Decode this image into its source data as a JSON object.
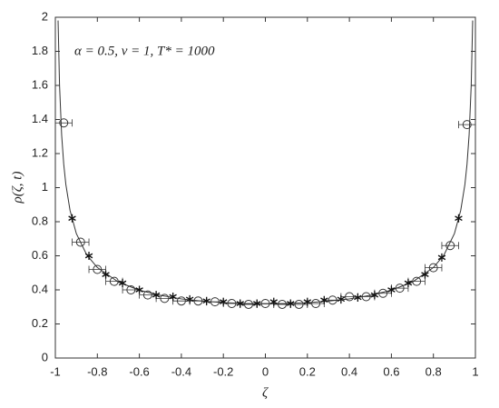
{
  "chart_data": {
    "type": "scatter",
    "xlabel": "ζ",
    "ylabel": "ρ(ζ, t)",
    "annotation": "α = 0.5, v = 1, T* = 1000",
    "xlim": [
      -1,
      1
    ],
    "ylim": [
      0,
      2
    ],
    "xticks": [
      -1,
      -0.8,
      -0.6,
      -0.4,
      -0.2,
      0,
      0.2,
      0.4,
      0.6,
      0.8,
      1
    ],
    "yticks": [
      0,
      0.2,
      0.4,
      0.6,
      0.8,
      1,
      1.2,
      1.4,
      1.6,
      1.8,
      2
    ],
    "grid": false,
    "series": [
      {
        "type": "line",
        "color": "#333333",
        "x": [
          -0.987,
          -0.98,
          -0.97,
          -0.96,
          -0.95,
          -0.93,
          -0.9,
          -0.85,
          -0.8,
          -0.7,
          -0.6,
          -0.5,
          -0.4,
          -0.3,
          -0.2,
          -0.1,
          0,
          0.1,
          0.2,
          0.3,
          0.4,
          0.5,
          0.6,
          0.7,
          0.8,
          0.85,
          0.9,
          0.93,
          0.95,
          0.96,
          0.97,
          0.98,
          0.987
        ],
        "values": [
          1.981,
          1.6,
          1.309,
          1.137,
          1.019,
          0.866,
          0.73,
          0.604,
          0.531,
          0.446,
          0.398,
          0.368,
          0.347,
          0.334,
          0.325,
          0.32,
          0.318,
          0.32,
          0.325,
          0.334,
          0.347,
          0.368,
          0.398,
          0.446,
          0.531,
          0.604,
          0.73,
          0.866,
          1.019,
          1.137,
          1.309,
          1.6,
          1.981
        ]
      },
      {
        "type": "scatter",
        "marker": "o",
        "color": "#333333",
        "x": [
          -0.96,
          -0.88,
          -0.8,
          -0.72,
          -0.64,
          -0.56,
          -0.48,
          -0.4,
          -0.32,
          -0.24,
          -0.16,
          -0.08,
          0,
          0.08,
          0.16,
          0.24,
          0.32,
          0.4,
          0.48,
          0.56,
          0.64,
          0.72,
          0.8,
          0.88,
          0.96
        ],
        "values": [
          1.38,
          0.68,
          0.52,
          0.45,
          0.4,
          0.37,
          0.35,
          0.335,
          0.335,
          0.33,
          0.32,
          0.315,
          0.32,
          0.315,
          0.315,
          0.32,
          0.34,
          0.36,
          0.36,
          0.38,
          0.41,
          0.45,
          0.53,
          0.66,
          1.37
        ],
        "xerr": [
          0.04,
          0.04,
          0.04,
          0.04,
          0.04,
          0.04,
          0.04,
          0.04,
          0.04,
          0.04,
          0.04,
          0.04,
          0.04,
          0.04,
          0.04,
          0.04,
          0.04,
          0.04,
          0.04,
          0.04,
          0.04,
          0.04,
          0.04,
          0.04,
          0.04
        ]
      },
      {
        "type": "scatter",
        "marker": "*",
        "color": "#111111",
        "x": [
          -0.92,
          -0.84,
          -0.76,
          -0.68,
          -0.6,
          -0.52,
          -0.44,
          -0.36,
          -0.28,
          -0.2,
          -0.12,
          -0.04,
          0.04,
          0.12,
          0.2,
          0.28,
          0.36,
          0.44,
          0.52,
          0.6,
          0.68,
          0.76,
          0.84,
          0.92
        ],
        "values": [
          0.82,
          0.6,
          0.49,
          0.44,
          0.4,
          0.37,
          0.36,
          0.345,
          0.335,
          0.33,
          0.32,
          0.32,
          0.33,
          0.32,
          0.33,
          0.34,
          0.345,
          0.355,
          0.37,
          0.4,
          0.44,
          0.49,
          0.59,
          0.82
        ]
      }
    ]
  }
}
